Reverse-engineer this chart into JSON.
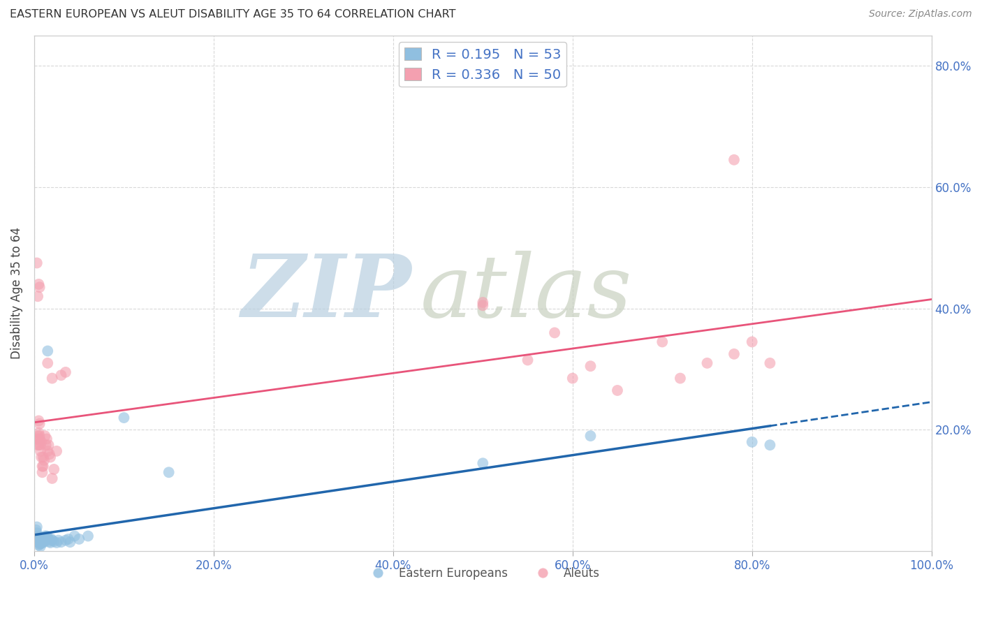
{
  "title": "EASTERN EUROPEAN VS ALEUT DISABILITY AGE 35 TO 64 CORRELATION CHART",
  "source": "Source: ZipAtlas.com",
  "ylabel": "Disability Age 35 to 64",
  "xlim": [
    0.0,
    1.0
  ],
  "ylim": [
    0.0,
    0.85
  ],
  "x_tick_labels": [
    "0.0%",
    "20.0%",
    "40.0%",
    "60.0%",
    "80.0%",
    "100.0%"
  ],
  "x_tick_vals": [
    0.0,
    0.2,
    0.4,
    0.6,
    0.8,
    1.0
  ],
  "y_tick_vals": [
    0.2,
    0.4,
    0.6,
    0.8
  ],
  "y_right_tick_labels": [
    "20.0%",
    "40.0%",
    "60.0%",
    "80.0%"
  ],
  "legend_r_blue": "0.195",
  "legend_n_blue": "53",
  "legend_r_pink": "0.336",
  "legend_n_pink": "50",
  "blue_color": "#90bfe0",
  "pink_color": "#f4a0b0",
  "blue_line_color": "#2166ac",
  "pink_line_color": "#e8547a",
  "blue_scatter": [
    [
      0.002,
      0.035
    ],
    [
      0.003,
      0.04
    ],
    [
      0.003,
      0.03
    ],
    [
      0.004,
      0.025
    ],
    [
      0.004,
      0.02
    ],
    [
      0.005,
      0.015
    ],
    [
      0.005,
      0.01
    ],
    [
      0.005,
      0.018
    ],
    [
      0.006,
      0.02
    ],
    [
      0.006,
      0.014
    ],
    [
      0.006,
      0.012
    ],
    [
      0.007,
      0.008
    ],
    [
      0.007,
      0.012
    ],
    [
      0.007,
      0.015
    ],
    [
      0.008,
      0.018
    ],
    [
      0.008,
      0.022
    ],
    [
      0.008,
      0.016
    ],
    [
      0.009,
      0.018
    ],
    [
      0.009,
      0.014
    ],
    [
      0.009,
      0.016
    ],
    [
      0.01,
      0.02
    ],
    [
      0.01,
      0.018
    ],
    [
      0.01,
      0.016
    ],
    [
      0.011,
      0.015
    ],
    [
      0.011,
      0.02
    ],
    [
      0.012,
      0.025
    ],
    [
      0.012,
      0.022
    ],
    [
      0.012,
      0.02
    ],
    [
      0.013,
      0.018
    ],
    [
      0.014,
      0.025
    ],
    [
      0.015,
      0.022
    ],
    [
      0.016,
      0.02
    ],
    [
      0.017,
      0.016
    ],
    [
      0.018,
      0.014
    ],
    [
      0.019,
      0.02
    ],
    [
      0.02,
      0.018
    ],
    [
      0.022,
      0.016
    ],
    [
      0.025,
      0.014
    ],
    [
      0.027,
      0.018
    ],
    [
      0.03,
      0.015
    ],
    [
      0.035,
      0.018
    ],
    [
      0.038,
      0.02
    ],
    [
      0.04,
      0.015
    ],
    [
      0.045,
      0.025
    ],
    [
      0.05,
      0.02
    ],
    [
      0.06,
      0.025
    ],
    [
      0.015,
      0.33
    ],
    [
      0.1,
      0.22
    ],
    [
      0.15,
      0.13
    ],
    [
      0.5,
      0.145
    ],
    [
      0.62,
      0.19
    ],
    [
      0.8,
      0.18
    ],
    [
      0.82,
      0.175
    ]
  ],
  "pink_scatter": [
    [
      0.003,
      0.185
    ],
    [
      0.004,
      0.19
    ],
    [
      0.004,
      0.175
    ],
    [
      0.005,
      0.195
    ],
    [
      0.005,
      0.175
    ],
    [
      0.005,
      0.215
    ],
    [
      0.006,
      0.21
    ],
    [
      0.006,
      0.185
    ],
    [
      0.006,
      0.19
    ],
    [
      0.007,
      0.175
    ],
    [
      0.007,
      0.165
    ],
    [
      0.008,
      0.18
    ],
    [
      0.008,
      0.155
    ],
    [
      0.009,
      0.13
    ],
    [
      0.009,
      0.14
    ],
    [
      0.01,
      0.155
    ],
    [
      0.01,
      0.14
    ],
    [
      0.011,
      0.15
    ],
    [
      0.012,
      0.19
    ],
    [
      0.013,
      0.175
    ],
    [
      0.014,
      0.185
    ],
    [
      0.015,
      0.165
    ],
    [
      0.016,
      0.175
    ],
    [
      0.017,
      0.16
    ],
    [
      0.018,
      0.155
    ],
    [
      0.02,
      0.12
    ],
    [
      0.022,
      0.135
    ],
    [
      0.025,
      0.165
    ],
    [
      0.003,
      0.475
    ],
    [
      0.004,
      0.42
    ],
    [
      0.005,
      0.44
    ],
    [
      0.006,
      0.435
    ],
    [
      0.015,
      0.31
    ],
    [
      0.02,
      0.285
    ],
    [
      0.03,
      0.29
    ],
    [
      0.035,
      0.295
    ],
    [
      0.5,
      0.41
    ],
    [
      0.5,
      0.405
    ],
    [
      0.55,
      0.315
    ],
    [
      0.58,
      0.36
    ],
    [
      0.6,
      0.285
    ],
    [
      0.62,
      0.305
    ],
    [
      0.65,
      0.265
    ],
    [
      0.7,
      0.345
    ],
    [
      0.72,
      0.285
    ],
    [
      0.75,
      0.31
    ],
    [
      0.78,
      0.325
    ],
    [
      0.8,
      0.345
    ],
    [
      0.82,
      0.31
    ],
    [
      0.78,
      0.645
    ]
  ],
  "background_color": "#ffffff",
  "grid_color": "#d8d8d8",
  "watermark_zip": "ZIP",
  "watermark_atlas": "atlas",
  "watermark_color_zip": "#b8cfe0",
  "watermark_color_atlas": "#c8d0c0"
}
